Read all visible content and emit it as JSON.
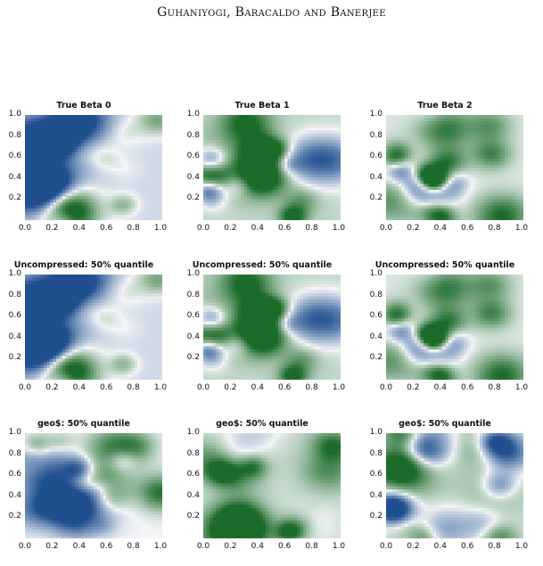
{
  "running_head": "Guhaniyogi, Baracaldo and Banerjee",
  "colors": {
    "blue": "#1f4f8f",
    "green": "#1c6b2a",
    "white": "#f4f6f8"
  },
  "chart_data": [
    {
      "type": "heatmap",
      "title": "True Beta 0",
      "row": 0,
      "col": 0,
      "seed": 11,
      "green_bias": -0.1,
      "x_ticks": [
        "0.0",
        "0.2",
        "0.4",
        "0.6",
        "0.8",
        "1.0"
      ],
      "y_ticks": [
        "1.0",
        "0.8",
        "0.6",
        "0.4",
        "0.2"
      ],
      "xlim": [
        0,
        1
      ],
      "ylim": [
        0,
        1
      ]
    },
    {
      "type": "heatmap",
      "title": "True Beta 1",
      "row": 0,
      "col": 1,
      "seed": 23,
      "green_bias": 0.15,
      "x_ticks": [
        "0.0",
        "0.2",
        "0.4",
        "0.6",
        "0.8",
        "1.0"
      ],
      "y_ticks": [
        "1.0",
        "0.8",
        "0.6",
        "0.4",
        "0.2"
      ],
      "xlim": [
        0,
        1
      ],
      "ylim": [
        0,
        1
      ]
    },
    {
      "type": "heatmap",
      "title": "True Beta 2",
      "row": 0,
      "col": 2,
      "seed": 37,
      "green_bias": 0.05,
      "x_ticks": [
        "0.0",
        "0.2",
        "0.4",
        "0.6",
        "0.8",
        "1.0"
      ],
      "y_ticks": [
        "1.0",
        "0.8",
        "0.6",
        "0.4",
        "0.2"
      ],
      "xlim": [
        0,
        1
      ],
      "ylim": [
        0,
        1
      ]
    },
    {
      "type": "heatmap",
      "title": "Uncompressed: 50% quantile",
      "row": 1,
      "col": 0,
      "seed": 11,
      "green_bias": -0.1,
      "x_ticks": [
        "0.0",
        "0.2",
        "0.4",
        "0.6",
        "0.8",
        "1.0"
      ],
      "y_ticks": [
        "1.0",
        "0.8",
        "0.6",
        "0.4",
        "0.2"
      ],
      "xlim": [
        0,
        1
      ],
      "ylim": [
        0,
        1
      ]
    },
    {
      "type": "heatmap",
      "title": "Uncompressed: 50% quantile",
      "row": 1,
      "col": 1,
      "seed": 23,
      "green_bias": 0.15,
      "x_ticks": [
        "0.0",
        "0.2",
        "0.4",
        "0.6",
        "0.8",
        "1.0"
      ],
      "y_ticks": [
        "1.0",
        "0.8",
        "0.6",
        "0.4",
        "0.2"
      ],
      "xlim": [
        0,
        1
      ],
      "ylim": [
        0,
        1
      ]
    },
    {
      "type": "heatmap",
      "title": "Uncompressed: 50% quantile",
      "row": 1,
      "col": 2,
      "seed": 37,
      "green_bias": 0.05,
      "x_ticks": [
        "0.0",
        "0.2",
        "0.4",
        "0.6",
        "0.8",
        "1.0"
      ],
      "y_ticks": [
        "1.0",
        "0.8",
        "0.6",
        "0.4",
        "0.2"
      ],
      "xlim": [
        0,
        1
      ],
      "ylim": [
        0,
        1
      ]
    },
    {
      "type": "heatmap",
      "title": "geo$: 50% quantile",
      "row": 2,
      "col": 0,
      "seed": 53,
      "green_bias": 0.0,
      "x_ticks": [
        "0.0",
        "0.2",
        "0.4",
        "0.6",
        "0.8",
        "1.0"
      ],
      "y_ticks": [
        "1.0",
        "0.8",
        "0.6",
        "0.4",
        "0.2"
      ],
      "xlim": [
        0,
        1
      ],
      "ylim": [
        0,
        1
      ]
    },
    {
      "type": "heatmap",
      "title": "geo$: 50% quantile",
      "row": 2,
      "col": 1,
      "seed": 61,
      "green_bias": 0.1,
      "x_ticks": [
        "0.0",
        "0.2",
        "0.4",
        "0.6",
        "0.8",
        "1.0"
      ],
      "y_ticks": [
        "1.0",
        "0.8",
        "0.6",
        "0.4",
        "0.2"
      ],
      "xlim": [
        0,
        1
      ],
      "ylim": [
        0,
        1
      ]
    },
    {
      "type": "heatmap",
      "title": "geo$: 50% quantile",
      "row": 2,
      "col": 2,
      "seed": 79,
      "green_bias": 0.1,
      "x_ticks": [
        "0.0",
        "0.2",
        "0.4",
        "0.6",
        "0.8",
        "1.0"
      ],
      "y_ticks": [
        "1.0",
        "0.8",
        "0.6",
        "0.4",
        "0.2"
      ],
      "xlim": [
        0,
        1
      ],
      "ylim": [
        0,
        1
      ]
    }
  ]
}
